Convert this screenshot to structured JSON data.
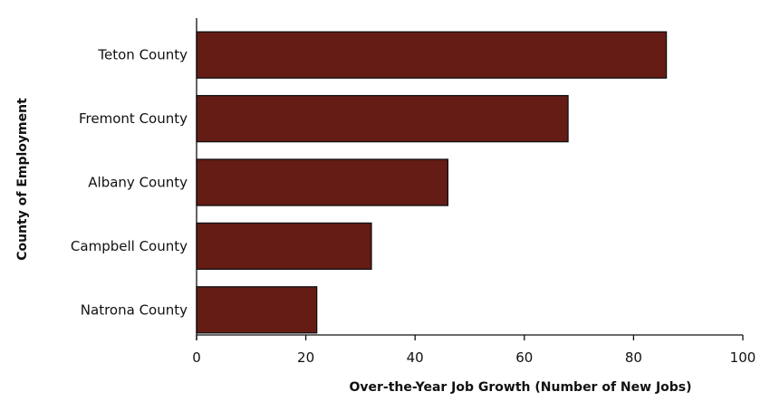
{
  "chart_data": {
    "type": "bar",
    "orientation": "horizontal",
    "title": "",
    "xlabel": "Over-the-Year Job Growth (Number of New Jobs)",
    "ylabel": "County of Employment",
    "categories": [
      "Teton County",
      "Fremont County",
      "Albany County",
      "Campbell County",
      "Natrona County"
    ],
    "values": [
      86,
      68,
      46,
      32,
      22
    ],
    "xlim": [
      0,
      100
    ],
    "xticks": [
      0,
      20,
      40,
      60,
      80,
      100
    ],
    "grid": false,
    "legend": "none",
    "bar_color": "#641c15",
    "bar_outline_color": "#111111"
  }
}
